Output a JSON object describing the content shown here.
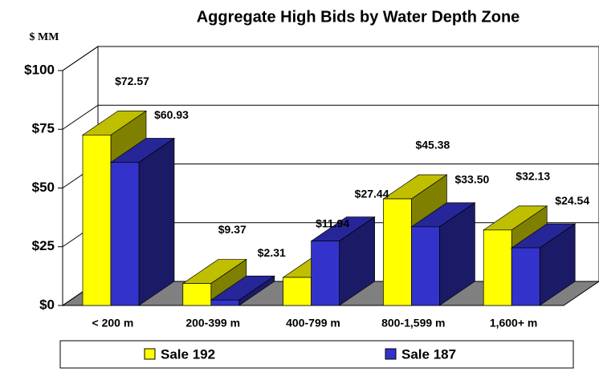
{
  "chart_data": {
    "type": "bar3d",
    "title": "Aggregate High Bids by Water Depth Zone",
    "y_label": "$ MM",
    "categories": [
      "< 200 m",
      "200-399 m",
      "400-799 m",
      "800-1,599 m",
      "1,600+ m"
    ],
    "series": [
      {
        "name": "Sale 192",
        "color": "#ffff00",
        "values": [
          72.57,
          9.37,
          11.94,
          45.38,
          32.13
        ],
        "value_labels": [
          "$72.57",
          "$9.37",
          "$11.94",
          "$45.38",
          "$32.13"
        ]
      },
      {
        "name": "Sale 187",
        "color": "#3333cc",
        "values": [
          60.93,
          2.31,
          27.44,
          33.5,
          24.54
        ],
        "value_labels": [
          "$60.93",
          "$2.31",
          "$27.44",
          "$33.50",
          "$24.54"
        ]
      }
    ],
    "ylim": [
      0,
      100
    ],
    "yticks": [
      {
        "value": 0,
        "label": "$0"
      },
      {
        "value": 25,
        "label": "$25"
      },
      {
        "value": 50,
        "label": "$50"
      },
      {
        "value": 75,
        "label": "$75"
      },
      {
        "value": 100,
        "label": "$100"
      }
    ],
    "grid": true,
    "legend": "bottom"
  }
}
